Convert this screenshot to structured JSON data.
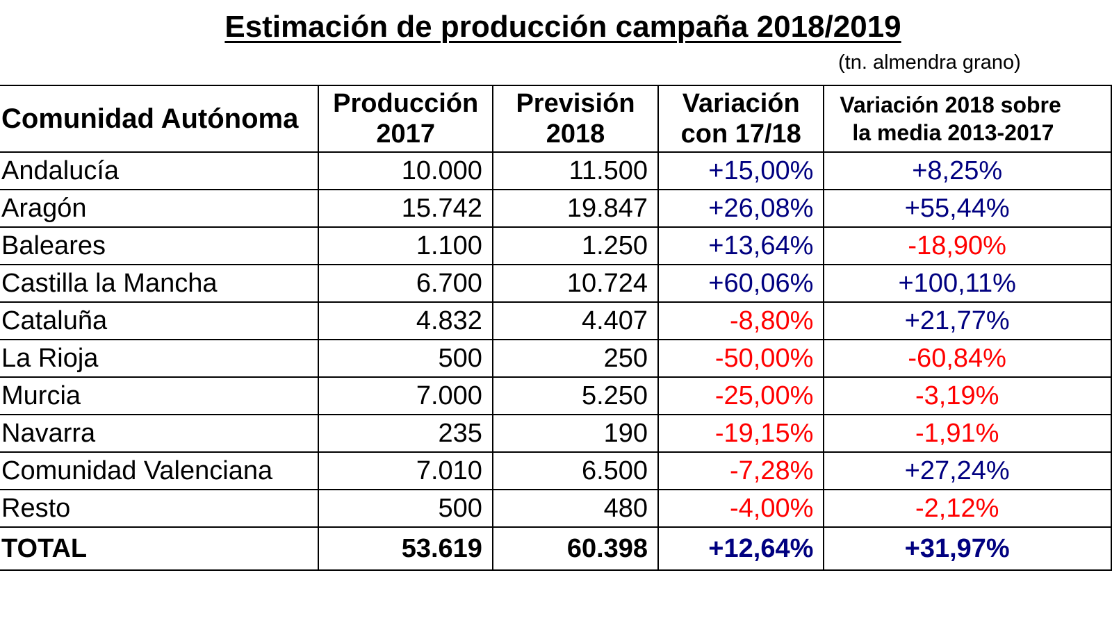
{
  "title": "Estimación de producción campaña 2018/2019",
  "unit_note": "(tn. almendra grano)",
  "colors": {
    "positive": "#000080",
    "negative": "#ff0000",
    "text": "#000000"
  },
  "headers": {
    "region": "Comunidad Autónoma",
    "prod_line1": "Producción",
    "prod_line2": "2017",
    "prev_line1": "Previsión",
    "prev_line2": "2018",
    "var_line1": "Variación",
    "var_line2": "con 17/18",
    "var2_line1": "Variación 2018 sobre",
    "var2_line2": "la media 2013-2017"
  },
  "rows": [
    {
      "region": "Andalucía",
      "prod2017": "10.000",
      "prev2018": "11.500",
      "var_17_18": "+15,00%",
      "var_media": "+8,25%"
    },
    {
      "region": "Aragón",
      "prod2017": "15.742",
      "prev2018": "19.847",
      "var_17_18": "+26,08%",
      "var_media": "+55,44%"
    },
    {
      "region": "Baleares",
      "prod2017": "1.100",
      "prev2018": "1.250",
      "var_17_18": "+13,64%",
      "var_media": "-18,90%"
    },
    {
      "region": "Castilla la Mancha",
      "prod2017": "6.700",
      "prev2018": "10.724",
      "var_17_18": "+60,06%",
      "var_media": "+100,11%"
    },
    {
      "region": "Cataluña",
      "prod2017": "4.832",
      "prev2018": "4.407",
      "var_17_18": "-8,80%",
      "var_media": "+21,77%"
    },
    {
      "region": "La Rioja",
      "prod2017": "500",
      "prev2018": "250",
      "var_17_18": "-50,00%",
      "var_media": "-60,84%"
    },
    {
      "region": "Murcia",
      "prod2017": "7.000",
      "prev2018": "5.250",
      "var_17_18": "-25,00%",
      "var_media": "-3,19%"
    },
    {
      "region": "Navarra",
      "prod2017": "235",
      "prev2018": "190",
      "var_17_18": "-19,15%",
      "var_media": "-1,91%"
    },
    {
      "region": "Comunidad Valenciana",
      "prod2017": "7.010",
      "prev2018": "6.500",
      "var_17_18": "-7,28%",
      "var_media": "+27,24%"
    },
    {
      "region": "Resto",
      "prod2017": "500",
      "prev2018": "480",
      "var_17_18": "-4,00%",
      "var_media": "-2,12%"
    }
  ],
  "total": {
    "region": "TOTAL",
    "prod2017": "53.619",
    "prev2018": "60.398",
    "var_17_18": "+12,64%",
    "var_media": "+31,97%"
  },
  "chart_data": {
    "type": "table",
    "title": "Estimación de producción campaña 2018/2019",
    "subtitle": "(tn. almendra grano)",
    "columns": [
      "Comunidad Autónoma",
      "Producción 2017",
      "Previsión 2018",
      "Variación con 17/18",
      "Variación 2018 sobre la media 2013-2017"
    ],
    "categories": [
      "Andalucía",
      "Aragón",
      "Baleares",
      "Castilla la Mancha",
      "Cataluña",
      "La Rioja",
      "Murcia",
      "Navarra",
      "Comunidad Valenciana",
      "Resto",
      "TOTAL"
    ],
    "series": [
      {
        "name": "Producción 2017",
        "values": [
          10000,
          15742,
          1100,
          6700,
          4832,
          500,
          7000,
          235,
          7010,
          500,
          53619
        ]
      },
      {
        "name": "Previsión 2018",
        "values": [
          11500,
          19847,
          1250,
          10724,
          4407,
          250,
          5250,
          190,
          6500,
          480,
          60398
        ]
      },
      {
        "name": "Variación con 17/18 (%)",
        "values": [
          15.0,
          26.08,
          13.64,
          60.06,
          -8.8,
          -50.0,
          -25.0,
          -19.15,
          -7.28,
          -4.0,
          12.64
        ]
      },
      {
        "name": "Variación 2018 sobre la media 2013-2017 (%)",
        "values": [
          8.25,
          55.44,
          -18.9,
          100.11,
          21.77,
          -60.84,
          -3.19,
          -1.91,
          27.24,
          -2.12,
          31.97
        ]
      }
    ]
  }
}
